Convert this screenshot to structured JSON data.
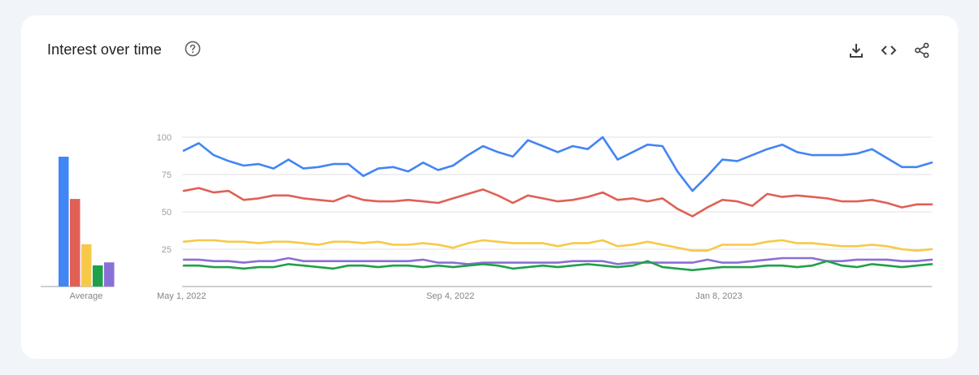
{
  "header": {
    "title": "Interest over time",
    "help_icon": "help-circle-icon",
    "actions": [
      {
        "icon": "download-icon"
      },
      {
        "icon": "embed-code-icon"
      },
      {
        "icon": "share-icon"
      }
    ]
  },
  "chart_data": [
    {
      "type": "bar",
      "xlabel": "Average",
      "categories": [
        "",
        "",
        "",
        "",
        ""
      ],
      "values": [
        86,
        58,
        28,
        14,
        16
      ],
      "ylim": [
        0,
        100
      ],
      "colors": [
        "#4285f4",
        "#e06055",
        "#f7c948",
        "#1fa149",
        "#8a6fd6"
      ]
    },
    {
      "type": "line",
      "ylim": [
        0,
        100
      ],
      "yticks": [
        25,
        50,
        75,
        100
      ],
      "ytick_labels": [
        "25",
        "50",
        "75",
        "100"
      ],
      "grid": true,
      "x_tick_labels": [
        {
          "index": 0,
          "label": "May 1, 2022"
        },
        {
          "index": 18,
          "label": "Sep 4, 2022"
        },
        {
          "index": 36,
          "label": "Jan 8, 2023"
        }
      ],
      "series": [
        {
          "color": "#4285f4",
          "values": [
            91,
            96,
            88,
            84,
            81,
            82,
            79,
            85,
            79,
            80,
            82,
            82,
            74,
            79,
            80,
            77,
            83,
            78,
            81,
            88,
            94,
            90,
            87,
            98,
            94,
            90,
            94,
            92,
            100,
            85,
            90,
            95,
            94,
            77,
            64,
            74,
            85,
            84,
            88,
            92,
            95,
            90,
            88,
            88,
            88,
            89,
            92,
            86,
            80,
            80,
            83
          ]
        },
        {
          "color": "#e06055",
          "values": [
            64,
            66,
            63,
            64,
            58,
            59,
            61,
            61,
            59,
            58,
            57,
            61,
            58,
            57,
            57,
            58,
            57,
            56,
            59,
            62,
            65,
            61,
            56,
            61,
            59,
            57,
            58,
            60,
            63,
            58,
            59,
            57,
            59,
            52,
            47,
            53,
            58,
            57,
            54,
            62,
            60,
            61,
            60,
            59,
            57,
            57,
            58,
            56,
            53,
            55,
            55
          ]
        },
        {
          "color": "#f7c948",
          "values": [
            30,
            31,
            31,
            30,
            30,
            29,
            30,
            30,
            29,
            28,
            30,
            30,
            29,
            30,
            28,
            28,
            29,
            28,
            26,
            29,
            31,
            30,
            29,
            29,
            29,
            27,
            29,
            29,
            31,
            27,
            28,
            30,
            28,
            26,
            24,
            24,
            28,
            28,
            28,
            30,
            31,
            29,
            29,
            28,
            27,
            27,
            28,
            27,
            25,
            24,
            25
          ]
        },
        {
          "color": "#8a6fd6",
          "values": [
            18,
            18,
            17,
            17,
            16,
            17,
            17,
            19,
            17,
            17,
            17,
            17,
            17,
            17,
            17,
            17,
            18,
            16,
            16,
            15,
            16,
            16,
            16,
            16,
            16,
            16,
            17,
            17,
            17,
            15,
            16,
            16,
            16,
            16,
            16,
            18,
            16,
            16,
            17,
            18,
            19,
            19,
            19,
            17,
            17,
            18,
            18,
            18,
            17,
            17,
            18
          ]
        },
        {
          "color": "#1fa149",
          "values": [
            14,
            14,
            13,
            13,
            12,
            13,
            13,
            15,
            14,
            13,
            12,
            14,
            14,
            13,
            14,
            14,
            13,
            14,
            13,
            14,
            15,
            14,
            12,
            13,
            14,
            13,
            14,
            15,
            14,
            13,
            14,
            17,
            13,
            12,
            11,
            12,
            13,
            13,
            13,
            14,
            14,
            13,
            14,
            17,
            14,
            13,
            15,
            14,
            13,
            14,
            15
          ]
        }
      ]
    }
  ]
}
